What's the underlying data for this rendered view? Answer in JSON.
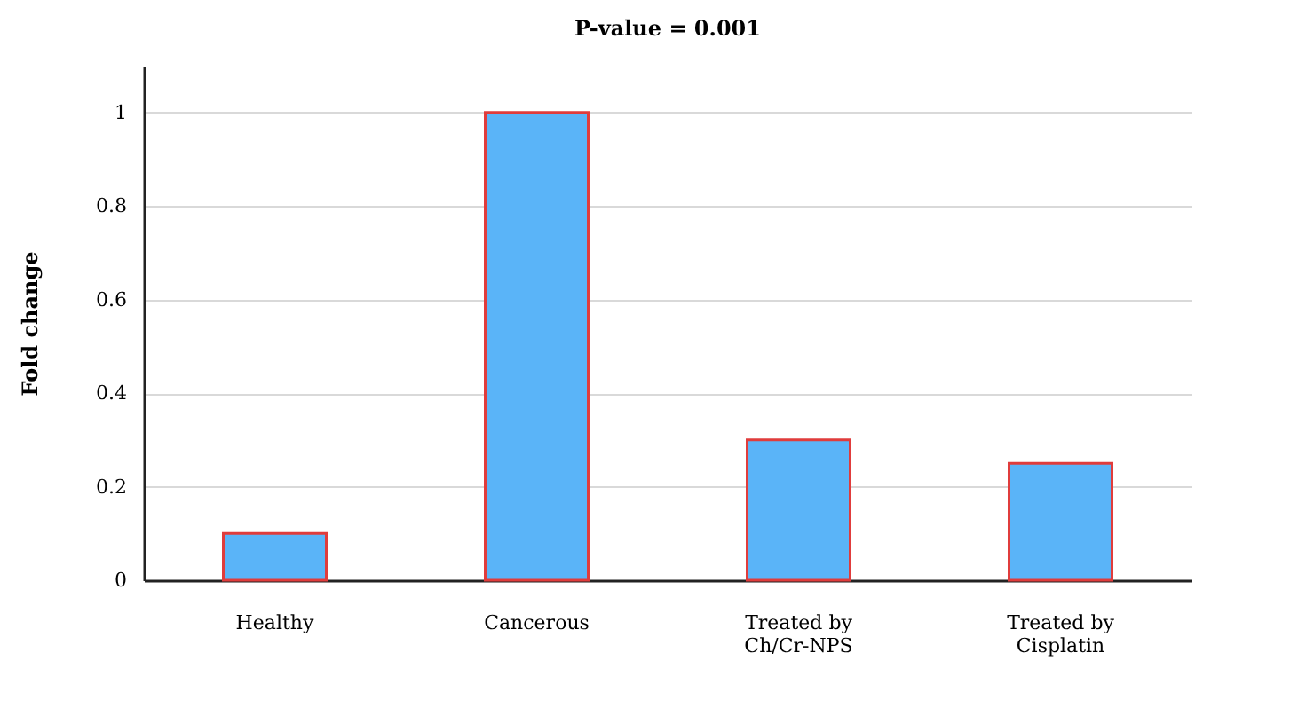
{
  "chart_data": {
    "type": "bar",
    "title": "P-value = 0.001",
    "ylabel": "Fold change",
    "categories": [
      "Healthy",
      "Cancerous",
      "Treated by Ch/Cr-NPS",
      "Treated by Cisplatin"
    ],
    "values": [
      0.1,
      1.0,
      0.3,
      0.25
    ],
    "color": "#5ab4f8",
    "ylim": [
      0,
      1.1
    ],
    "yticks": [
      0,
      0.2,
      0.4,
      0.6,
      0.8,
      1
    ],
    "grid": "y"
  }
}
